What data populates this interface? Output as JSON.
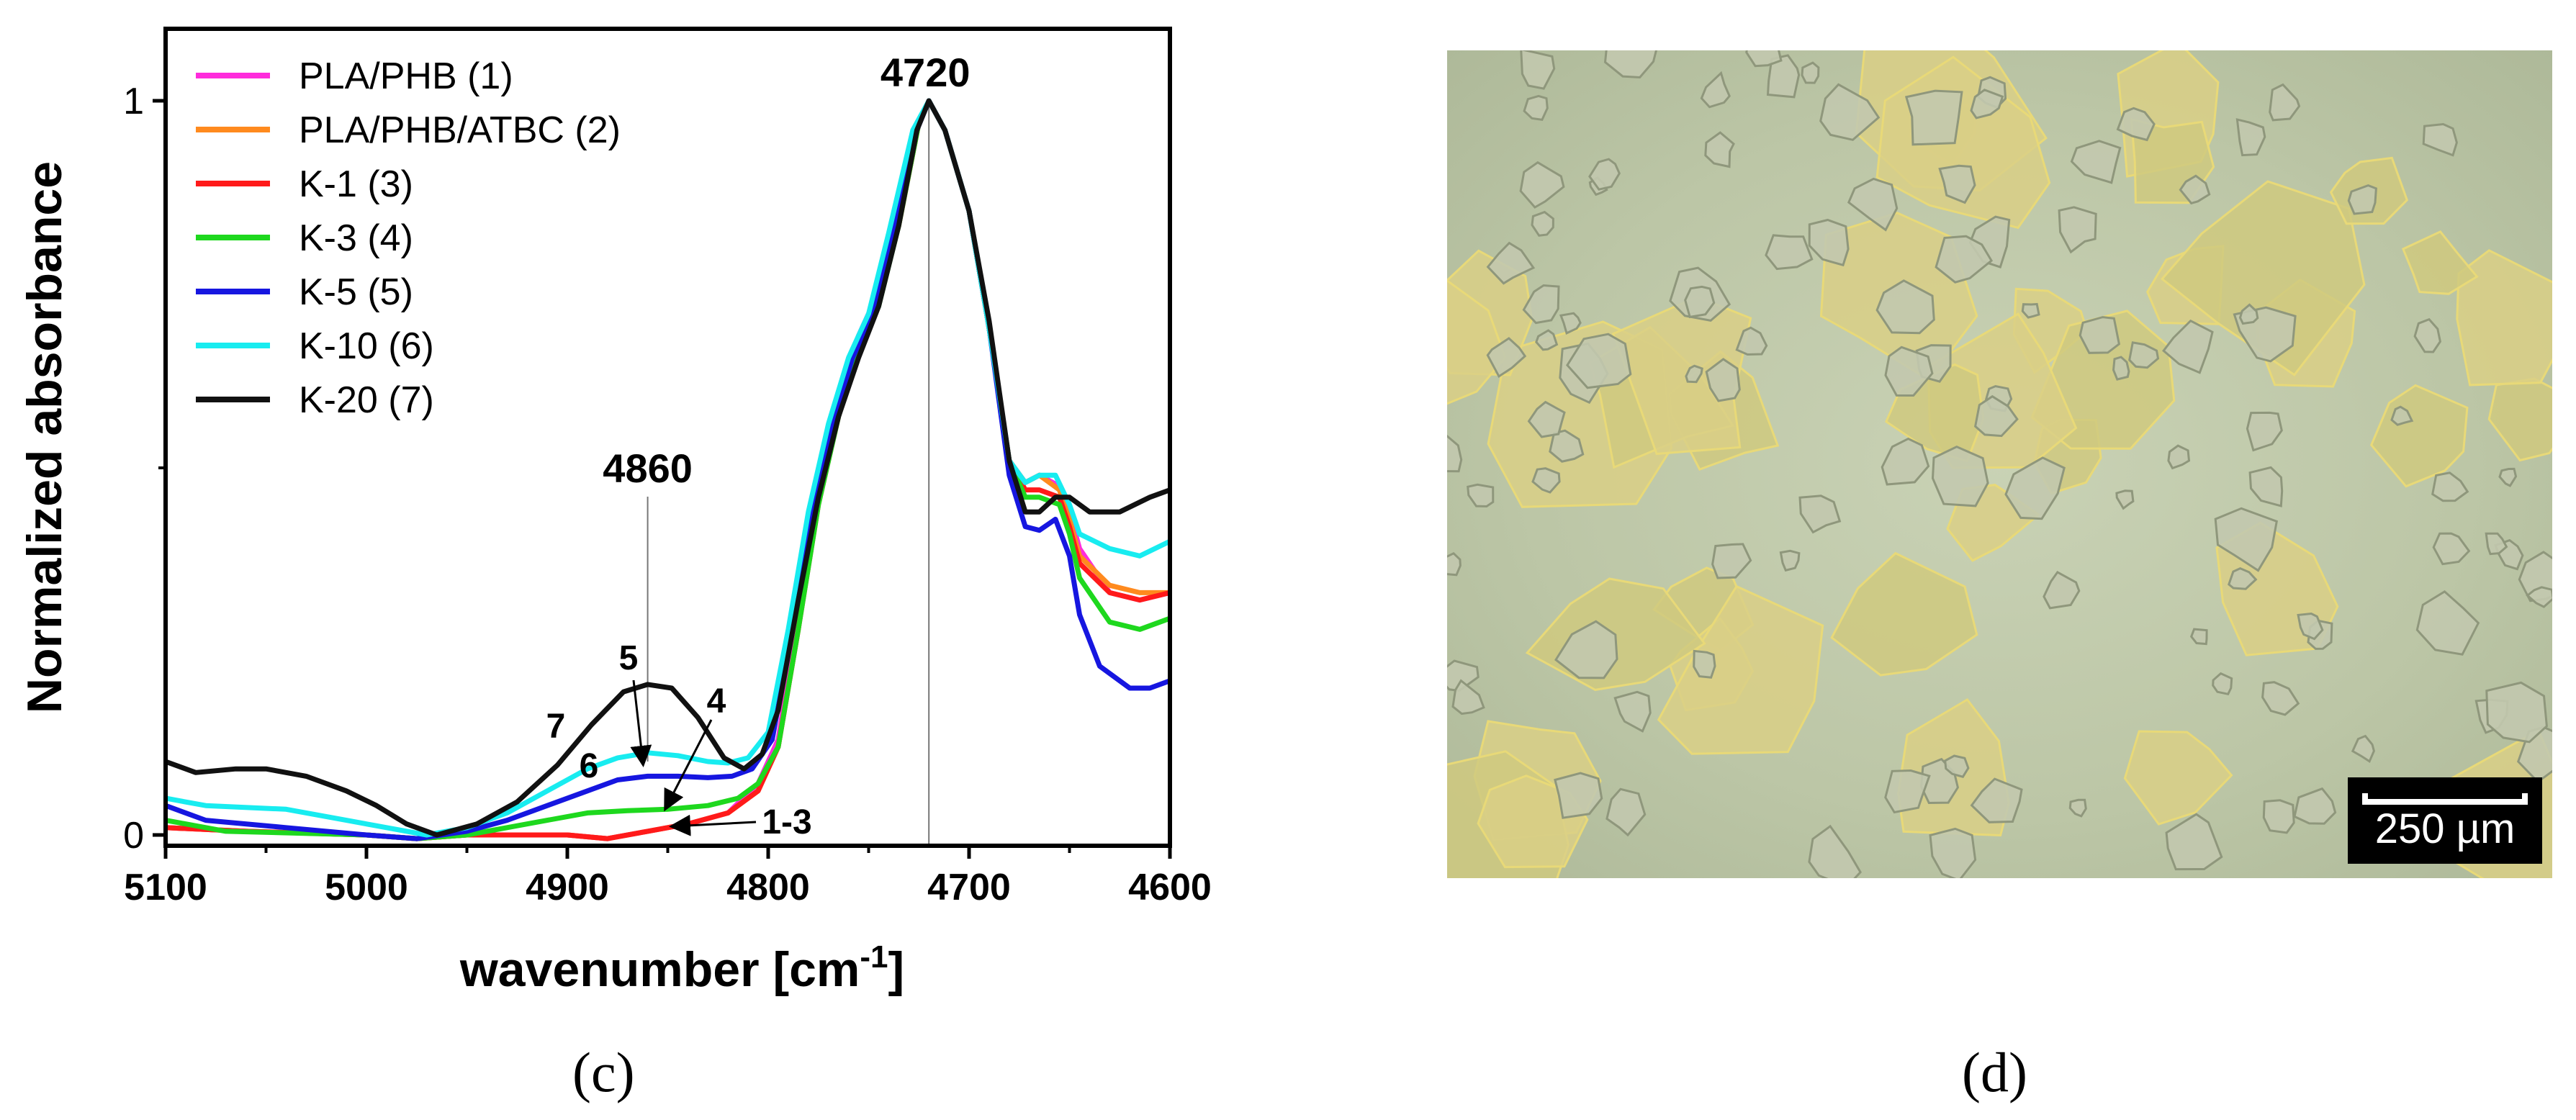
{
  "panels": {
    "left_label": "(c)",
    "right_label": "(d)"
  },
  "colors": {
    "pla_phb": "#ff2bdc",
    "pla_phb_atbc": "#ff8a1e",
    "k1": "#ff1a1a",
    "k3": "#1ed81e",
    "k5": "#1616e0",
    "k10": "#18ecf0",
    "k20": "#111111"
  },
  "chart_data": {
    "type": "line",
    "xlabel": "wavenumber [cm",
    "xlabel_sup": "-1",
    "xlabel_end": "]",
    "ylabel": "Normalized absorbance",
    "xlim": [
      5100,
      4600
    ],
    "ylim": [
      0,
      1
    ],
    "x_ticks": [
      "5100",
      "5000",
      "4900",
      "4800",
      "4700",
      "4600"
    ],
    "y_ticks": [
      "0",
      "1"
    ],
    "legend_position": "top-left",
    "series": [
      {
        "name": "PLA/PHB (1)",
        "color": "#ff2bdc",
        "points": [
          [
            5100,
            0.01
          ],
          [
            5060,
            0.005
          ],
          [
            5000,
            0.0
          ],
          [
            4975,
            -0.005
          ],
          [
            4950,
            0.0
          ],
          [
            4900,
            0.0
          ],
          [
            4880,
            -0.005
          ],
          [
            4860,
            0.005
          ],
          [
            4840,
            0.015
          ],
          [
            4820,
            0.03
          ],
          [
            4805,
            0.07
          ],
          [
            4795,
            0.13
          ],
          [
            4785,
            0.3
          ],
          [
            4775,
            0.48
          ],
          [
            4765,
            0.6
          ],
          [
            4755,
            0.68
          ],
          [
            4745,
            0.74
          ],
          [
            4735,
            0.84
          ],
          [
            4725,
            0.97
          ],
          [
            4720,
            1.0
          ],
          [
            4712,
            0.96
          ],
          [
            4700,
            0.85
          ],
          [
            4690,
            0.69
          ],
          [
            4680,
            0.51
          ],
          [
            4672,
            0.48
          ],
          [
            4665,
            0.49
          ],
          [
            4655,
            0.475
          ],
          [
            4650,
            0.44
          ],
          [
            4645,
            0.39
          ],
          [
            4630,
            0.33
          ],
          [
            4615,
            0.32
          ],
          [
            4600,
            0.33
          ]
        ]
      },
      {
        "name": "PLA/PHB/ATBC (2)",
        "color": "#ff8a1e",
        "points": [
          [
            5100,
            0.01
          ],
          [
            5060,
            0.005
          ],
          [
            5000,
            0.0
          ],
          [
            4975,
            -0.005
          ],
          [
            4950,
            0.0
          ],
          [
            4900,
            0.0
          ],
          [
            4880,
            -0.005
          ],
          [
            4860,
            0.005
          ],
          [
            4840,
            0.015
          ],
          [
            4820,
            0.03
          ],
          [
            4805,
            0.06
          ],
          [
            4795,
            0.12
          ],
          [
            4785,
            0.28
          ],
          [
            4775,
            0.46
          ],
          [
            4765,
            0.58
          ],
          [
            4755,
            0.67
          ],
          [
            4745,
            0.73
          ],
          [
            4735,
            0.83
          ],
          [
            4725,
            0.97
          ],
          [
            4720,
            1.0
          ],
          [
            4712,
            0.96
          ],
          [
            4700,
            0.85
          ],
          [
            4690,
            0.69
          ],
          [
            4680,
            0.51
          ],
          [
            4672,
            0.48
          ],
          [
            4665,
            0.49
          ],
          [
            4655,
            0.47
          ],
          [
            4650,
            0.43
          ],
          [
            4645,
            0.38
          ],
          [
            4630,
            0.34
          ],
          [
            4615,
            0.33
          ],
          [
            4600,
            0.33
          ]
        ]
      },
      {
        "name": "K-1 (3)",
        "color": "#ff1a1a",
        "points": [
          [
            5100,
            0.01
          ],
          [
            5060,
            0.005
          ],
          [
            5000,
            0.0
          ],
          [
            4975,
            -0.005
          ],
          [
            4950,
            0.0
          ],
          [
            4900,
            0.0
          ],
          [
            4880,
            -0.005
          ],
          [
            4860,
            0.005
          ],
          [
            4840,
            0.015
          ],
          [
            4820,
            0.03
          ],
          [
            4805,
            0.06
          ],
          [
            4795,
            0.12
          ],
          [
            4785,
            0.28
          ],
          [
            4775,
            0.45
          ],
          [
            4765,
            0.57
          ],
          [
            4755,
            0.66
          ],
          [
            4745,
            0.73
          ],
          [
            4735,
            0.83
          ],
          [
            4725,
            0.97
          ],
          [
            4720,
            1.0
          ],
          [
            4712,
            0.96
          ],
          [
            4700,
            0.85
          ],
          [
            4690,
            0.69
          ],
          [
            4680,
            0.51
          ],
          [
            4672,
            0.47
          ],
          [
            4665,
            0.47
          ],
          [
            4655,
            0.46
          ],
          [
            4650,
            0.42
          ],
          [
            4645,
            0.37
          ],
          [
            4630,
            0.33
          ],
          [
            4615,
            0.32
          ],
          [
            4600,
            0.33
          ]
        ]
      },
      {
        "name": "K-3 (4)",
        "color": "#1ed81e",
        "points": [
          [
            5100,
            0.02
          ],
          [
            5070,
            0.005
          ],
          [
            5000,
            0.0
          ],
          [
            4975,
            -0.005
          ],
          [
            4950,
            0.0
          ],
          [
            4930,
            0.01
          ],
          [
            4910,
            0.02
          ],
          [
            4890,
            0.03
          ],
          [
            4870,
            0.033
          ],
          [
            4850,
            0.035
          ],
          [
            4830,
            0.04
          ],
          [
            4815,
            0.05
          ],
          [
            4805,
            0.07
          ],
          [
            4795,
            0.12
          ],
          [
            4785,
            0.28
          ],
          [
            4775,
            0.45
          ],
          [
            4765,
            0.57
          ],
          [
            4755,
            0.66
          ],
          [
            4745,
            0.72
          ],
          [
            4735,
            0.83
          ],
          [
            4725,
            0.97
          ],
          [
            4720,
            1.0
          ],
          [
            4712,
            0.96
          ],
          [
            4700,
            0.85
          ],
          [
            4690,
            0.69
          ],
          [
            4680,
            0.51
          ],
          [
            4672,
            0.46
          ],
          [
            4665,
            0.46
          ],
          [
            4655,
            0.45
          ],
          [
            4650,
            0.41
          ],
          [
            4645,
            0.35
          ],
          [
            4630,
            0.29
          ],
          [
            4615,
            0.28
          ],
          [
            4600,
            0.295
          ]
        ]
      },
      {
        "name": "K-5 (5)",
        "color": "#1616e0",
        "points": [
          [
            5100,
            0.04
          ],
          [
            5080,
            0.02
          ],
          [
            5040,
            0.01
          ],
          [
            5000,
            0.0
          ],
          [
            4975,
            -0.005
          ],
          [
            4950,
            0.005
          ],
          [
            4930,
            0.02
          ],
          [
            4910,
            0.04
          ],
          [
            4890,
            0.06
          ],
          [
            4875,
            0.075
          ],
          [
            4860,
            0.08
          ],
          [
            4845,
            0.08
          ],
          [
            4830,
            0.078
          ],
          [
            4818,
            0.08
          ],
          [
            4808,
            0.09
          ],
          [
            4798,
            0.13
          ],
          [
            4788,
            0.28
          ],
          [
            4778,
            0.44
          ],
          [
            4768,
            0.56
          ],
          [
            4758,
            0.65
          ],
          [
            4748,
            0.71
          ],
          [
            4738,
            0.82
          ],
          [
            4726,
            0.96
          ],
          [
            4720,
            1.0
          ],
          [
            4712,
            0.96
          ],
          [
            4700,
            0.85
          ],
          [
            4690,
            0.69
          ],
          [
            4680,
            0.49
          ],
          [
            4672,
            0.42
          ],
          [
            4665,
            0.415
          ],
          [
            4657,
            0.43
          ],
          [
            4650,
            0.38
          ],
          [
            4645,
            0.3
          ],
          [
            4635,
            0.23
          ],
          [
            4620,
            0.2
          ],
          [
            4610,
            0.2
          ],
          [
            4600,
            0.21
          ]
        ]
      },
      {
        "name": "K-10 (6)",
        "color": "#18ecf0",
        "points": [
          [
            5100,
            0.05
          ],
          [
            5080,
            0.04
          ],
          [
            5040,
            0.035
          ],
          [
            5010,
            0.02
          ],
          [
            4990,
            0.01
          ],
          [
            4970,
            0.0
          ],
          [
            4950,
            0.01
          ],
          [
            4930,
            0.03
          ],
          [
            4910,
            0.06
          ],
          [
            4890,
            0.09
          ],
          [
            4875,
            0.105
          ],
          [
            4860,
            0.112
          ],
          [
            4845,
            0.108
          ],
          [
            4830,
            0.1
          ],
          [
            4820,
            0.098
          ],
          [
            4810,
            0.105
          ],
          [
            4800,
            0.14
          ],
          [
            4790,
            0.28
          ],
          [
            4780,
            0.44
          ],
          [
            4770,
            0.56
          ],
          [
            4760,
            0.65
          ],
          [
            4750,
            0.71
          ],
          [
            4740,
            0.82
          ],
          [
            4728,
            0.96
          ],
          [
            4720,
            1.0
          ],
          [
            4712,
            0.96
          ],
          [
            4700,
            0.85
          ],
          [
            4690,
            0.69
          ],
          [
            4680,
            0.51
          ],
          [
            4672,
            0.48
          ],
          [
            4665,
            0.49
          ],
          [
            4657,
            0.49
          ],
          [
            4650,
            0.45
          ],
          [
            4645,
            0.41
          ],
          [
            4630,
            0.39
          ],
          [
            4615,
            0.38
          ],
          [
            4600,
            0.4
          ]
        ]
      },
      {
        "name": "K-20 (7)",
        "color": "#111111",
        "points": [
          [
            5100,
            0.1
          ],
          [
            5085,
            0.085
          ],
          [
            5065,
            0.09
          ],
          [
            5050,
            0.09
          ],
          [
            5030,
            0.08
          ],
          [
            5010,
            0.06
          ],
          [
            4995,
            0.04
          ],
          [
            4980,
            0.015
          ],
          [
            4965,
            0.0
          ],
          [
            4945,
            0.015
          ],
          [
            4925,
            0.045
          ],
          [
            4905,
            0.095
          ],
          [
            4888,
            0.15
          ],
          [
            4872,
            0.195
          ],
          [
            4860,
            0.205
          ],
          [
            4848,
            0.2
          ],
          [
            4835,
            0.16
          ],
          [
            4822,
            0.105
          ],
          [
            4812,
            0.09
          ],
          [
            4803,
            0.11
          ],
          [
            4795,
            0.17
          ],
          [
            4785,
            0.32
          ],
          [
            4775,
            0.46
          ],
          [
            4765,
            0.57
          ],
          [
            4755,
            0.65
          ],
          [
            4745,
            0.72
          ],
          [
            4735,
            0.83
          ],
          [
            4726,
            0.96
          ],
          [
            4720,
            1.0
          ],
          [
            4712,
            0.96
          ],
          [
            4700,
            0.85
          ],
          [
            4690,
            0.7
          ],
          [
            4680,
            0.51
          ],
          [
            4672,
            0.44
          ],
          [
            4665,
            0.44
          ],
          [
            4657,
            0.46
          ],
          [
            4650,
            0.46
          ],
          [
            4640,
            0.44
          ],
          [
            4625,
            0.44
          ],
          [
            4610,
            0.46
          ],
          [
            4600,
            0.47
          ]
        ]
      }
    ],
    "annotations": [
      {
        "text": "4720",
        "x": 4720,
        "y": 1.0,
        "kind": "peak"
      },
      {
        "text": "4860",
        "x": 4860,
        "y": 0.08,
        "kind": "peak"
      },
      {
        "text": "5",
        "x": 4868,
        "y": 0.2
      },
      {
        "text": "7",
        "x": 4924,
        "y": 0.14
      },
      {
        "text": "6",
        "x": 4891,
        "y": 0.08
      },
      {
        "text": "4",
        "x": 4828,
        "y": 0.16
      },
      {
        "text": "1-3",
        "x": 4830,
        "y": 0.02
      }
    ]
  },
  "scale_bar": {
    "label": "250 µm"
  }
}
